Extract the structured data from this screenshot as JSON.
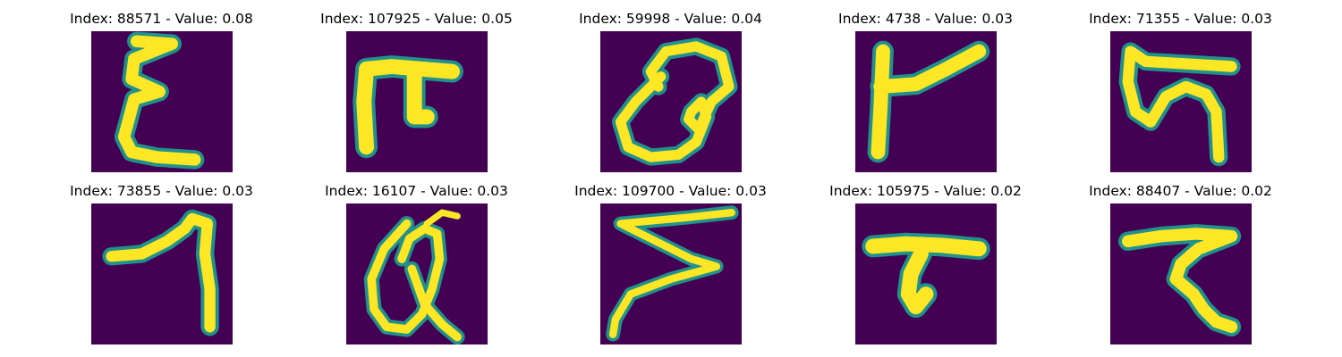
{
  "figure": {
    "colors": {
      "background": "#440154",
      "stroke_core": "#fde725",
      "stroke_edge": "#21918c",
      "stroke_mid": "#5ec962"
    },
    "panels": [
      {
        "title": "Index: 88571 - Value: 0.08",
        "glyph": "E-like handwritten character (epsilon)"
      },
      {
        "title": "Index: 107925 - Value: 0.05",
        "glyph": "pi-like handwritten character"
      },
      {
        "title": "Index: 59998 - Value: 0.04",
        "glyph": "Q/a-like looped character"
      },
      {
        "title": "Index: 4738 - Value: 0.03",
        "glyph": "r-like character"
      },
      {
        "title": "Index: 71355 - Value: 0.03",
        "glyph": "S-like looped character"
      },
      {
        "title": "Index: 73855 - Value: 0.03",
        "glyph": "7-like character"
      },
      {
        "title": "Index: 16107 - Value: 0.03",
        "glyph": "Q-like looped character"
      },
      {
        "title": "Index: 109700 - Value: 0.03",
        "glyph": "Z/sigma-like character"
      },
      {
        "title": "Index: 105975 - Value: 0.02",
        "glyph": "T-like character"
      },
      {
        "title": "Index: 88407 - Value: 0.02",
        "glyph": "z-like character"
      }
    ]
  }
}
